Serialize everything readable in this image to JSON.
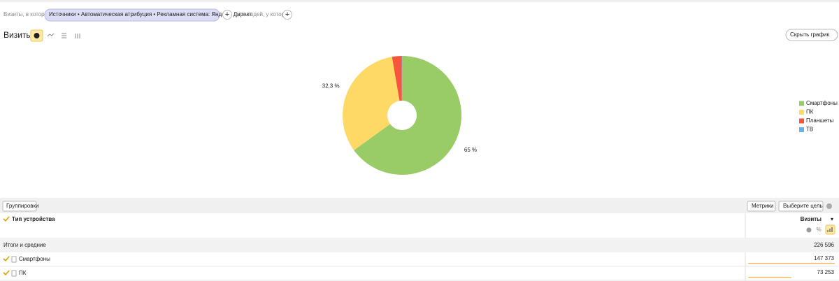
{
  "filter": {
    "prefix": "Визиты, в которых",
    "chip": "Источники • Автоматическая атрибуция • Рекламная система: Яндекс: Директ",
    "suffix": "для людей, у которых"
  },
  "report": {
    "title": "Визиты",
    "hide_chart": "Скрыть график"
  },
  "chart_data": {
    "type": "pie",
    "categories": [
      "Смартфоны",
      "ПК",
      "Планшеты",
      "ТВ"
    ],
    "values": [
      65,
      32.3,
      2.6,
      0.1
    ],
    "value_labels": [
      "65 %",
      "32,3 %",
      null,
      null
    ],
    "colors": [
      "#99cc66",
      "#ffd966",
      "#f5553c",
      "#66b2e6"
    ],
    "legend": "right"
  },
  "table": {
    "groupings": "Группировки",
    "metrics": "Метрики",
    "goal": "Выберите цель",
    "dimension": "Тип устройства",
    "metric": "Визиты",
    "totals_label": "Итоги и средние",
    "totals": 226596,
    "totals_text": "226 596",
    "rows": [
      {
        "name": "Смартфоны",
        "value": 147373,
        "text": "147 373"
      },
      {
        "name": "ПК",
        "value": 73253,
        "text": "73 253"
      }
    ]
  }
}
